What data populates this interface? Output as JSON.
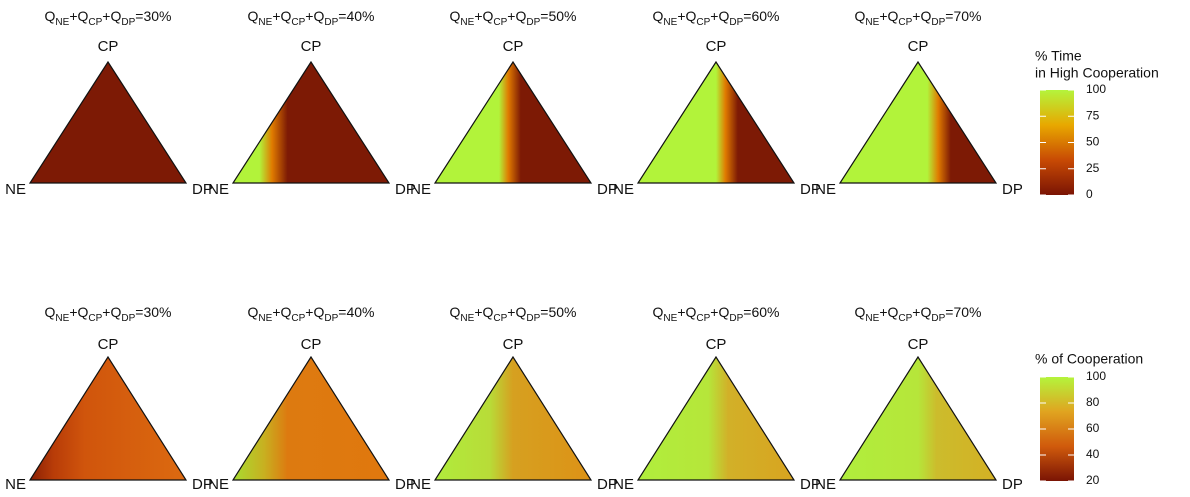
{
  "chart_data": [
    {
      "type": "ternary_heatmap",
      "vertex_labels": {
        "top": "CP",
        "left": "NE",
        "right": "DP"
      },
      "panels": [
        {
          "title": [
            "Q",
            "NE",
            "+Q",
            "CP",
            "+Q",
            "DP",
            "=30%"
          ]
        },
        {
          "title": [
            "Q",
            "NE",
            "+Q",
            "CP",
            "+Q",
            "DP",
            "=40%"
          ]
        },
        {
          "title": [
            "Q",
            "NE",
            "+Q",
            "CP",
            "+Q",
            "DP",
            "=50%"
          ]
        },
        {
          "title": [
            "Q",
            "NE",
            "+Q",
            "CP",
            "+Q",
            "DP",
            "=60%"
          ]
        },
        {
          "title": [
            "Q",
            "NE",
            "+Q",
            "CP",
            "+Q",
            "DP",
            "=70%"
          ]
        }
      ],
      "colorbar": {
        "title": [
          "% Time",
          "in High Cooperation"
        ],
        "lim": [
          0,
          100
        ],
        "ticks": [
          0,
          25,
          50,
          75,
          100
        ],
        "colors": [
          "#7a1404",
          "#c84a04",
          "#e8a800",
          "#b4f43c"
        ]
      }
    },
    {
      "type": "ternary_heatmap",
      "vertex_labels": {
        "top": "CP",
        "left": "NE",
        "right": "DP"
      },
      "panels": [
        {
          "title": [
            "Q",
            "NE",
            "+Q",
            "CP",
            "+Q",
            "DP",
            "=30%"
          ]
        },
        {
          "title": [
            "Q",
            "NE",
            "+Q",
            "CP",
            "+Q",
            "DP",
            "=40%"
          ]
        },
        {
          "title": [
            "Q",
            "NE",
            "+Q",
            "CP",
            "+Q",
            "DP",
            "=50%"
          ]
        },
        {
          "title": [
            "Q",
            "NE",
            "+Q",
            "CP",
            "+Q",
            "DP",
            "=60%"
          ]
        },
        {
          "title": [
            "Q",
            "NE",
            "+Q",
            "CP",
            "+Q",
            "DP",
            "=70%"
          ]
        }
      ],
      "colorbar": {
        "title": [
          "% of Cooperation"
        ],
        "lim": [
          20,
          100
        ],
        "ticks": [
          20,
          40,
          60,
          80,
          100
        ],
        "colors": [
          "#7a1404",
          "#d05a0c",
          "#e0a420",
          "#b4f43c"
        ]
      }
    }
  ]
}
